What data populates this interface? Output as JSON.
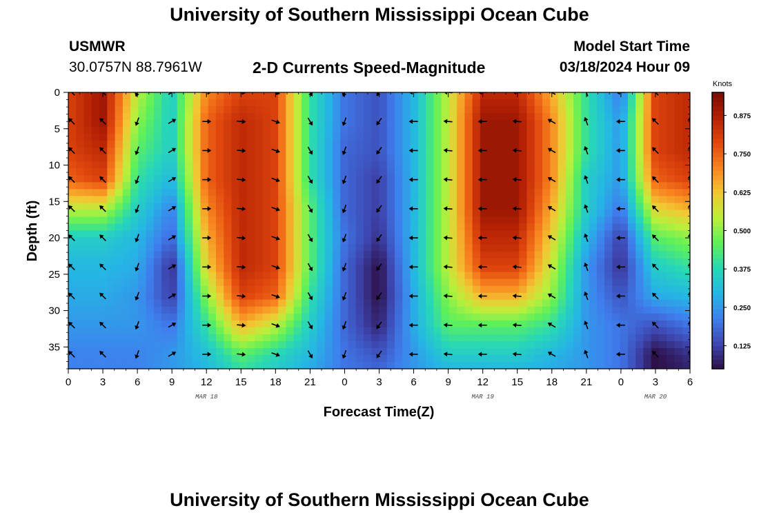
{
  "page": {
    "title_top": "University of Southern Mississippi Ocean Cube",
    "title_bottom": "University of Southern Mississippi Ocean Cube",
    "station": "USMWR",
    "coordinates": "30.0757N  88.7961W",
    "plot_title": "2-D Currents Speed-Magnitude",
    "model_start_label": "Model Start Time",
    "model_start_value": "03/18/2024 Hour 09"
  },
  "colors": {
    "ramp": [
      "#2d0f47",
      "#3e46b0",
      "#3f7eee",
      "#25b6e4",
      "#27d7b7",
      "#5ef05a",
      "#b9f03b",
      "#f2c733",
      "#f8841f",
      "#e1480e",
      "#b42004",
      "#7a0c03"
    ]
  },
  "chart_data": {
    "type": "heatmap",
    "title": "2-D Currents Speed-Magnitude",
    "xlabel": "Forecast Time(Z)",
    "ylabel": "Depth (ft)",
    "xlim": [
      0,
      54
    ],
    "ylim": [
      38,
      0
    ],
    "x_ticks": [
      0,
      3,
      6,
      9,
      12,
      15,
      18,
      21,
      24,
      27,
      30,
      33,
      36,
      39,
      42,
      45,
      48,
      51,
      54
    ],
    "x_tick_labels": [
      "0",
      "3",
      "6",
      "9",
      "12",
      "15",
      "18",
      "21",
      "0",
      "3",
      "6",
      "9",
      "12",
      "15",
      "18",
      "21",
      "0",
      "3",
      "6"
    ],
    "y_ticks": [
      0,
      5,
      10,
      15,
      20,
      25,
      30,
      35
    ],
    "y_tick_labels": [
      "0",
      "5",
      "10",
      "15",
      "20",
      "25",
      "30",
      "35"
    ],
    "date_labels": [
      {
        "x": 12,
        "label": "MAR 18"
      },
      {
        "x": 36,
        "label": "MAR 19"
      },
      {
        "x": 51,
        "label": "MAR 20"
      }
    ],
    "colorbar": {
      "label": "Knots",
      "range": [
        0.05,
        0.95
      ],
      "ticks": [
        0.125,
        0.25,
        0.375,
        0.5,
        0.625,
        0.75,
        0.875
      ],
      "tick_labels": [
        "0.125",
        "0.250",
        "0.375",
        "0.500",
        "0.625",
        "0.750",
        "0.875"
      ]
    },
    "speed_profile_knots": {
      "times": [
        0,
        3,
        6,
        9,
        12,
        15,
        18,
        21,
        24,
        27,
        30,
        33,
        36,
        39,
        42,
        45,
        48,
        51,
        54
      ],
      "depths": [
        0,
        4,
        8,
        12,
        16,
        20,
        24,
        28,
        32,
        36,
        38
      ],
      "values": [
        [
          0.8,
          0.9,
          0.55,
          0.35,
          0.7,
          0.8,
          0.8,
          0.4,
          0.2,
          0.15,
          0.3,
          0.55,
          0.85,
          0.85,
          0.65,
          0.4,
          0.2,
          0.8,
          0.85
        ],
        [
          0.8,
          0.9,
          0.5,
          0.35,
          0.75,
          0.85,
          0.8,
          0.4,
          0.2,
          0.15,
          0.3,
          0.55,
          0.9,
          0.9,
          0.7,
          0.4,
          0.25,
          0.8,
          0.85
        ],
        [
          0.8,
          0.85,
          0.45,
          0.35,
          0.75,
          0.85,
          0.8,
          0.4,
          0.18,
          0.15,
          0.3,
          0.55,
          0.9,
          0.9,
          0.7,
          0.4,
          0.25,
          0.8,
          0.85
        ],
        [
          0.75,
          0.8,
          0.4,
          0.3,
          0.75,
          0.85,
          0.8,
          0.4,
          0.18,
          0.12,
          0.3,
          0.55,
          0.9,
          0.9,
          0.7,
          0.35,
          0.25,
          0.75,
          0.8
        ],
        [
          0.55,
          0.55,
          0.35,
          0.22,
          0.7,
          0.85,
          0.8,
          0.45,
          0.18,
          0.12,
          0.3,
          0.55,
          0.9,
          0.9,
          0.65,
          0.35,
          0.2,
          0.6,
          0.65
        ],
        [
          0.35,
          0.35,
          0.3,
          0.18,
          0.65,
          0.85,
          0.8,
          0.45,
          0.2,
          0.1,
          0.3,
          0.55,
          0.85,
          0.85,
          0.6,
          0.3,
          0.12,
          0.45,
          0.5
        ],
        [
          0.3,
          0.3,
          0.28,
          0.1,
          0.6,
          0.85,
          0.8,
          0.45,
          0.18,
          0.05,
          0.3,
          0.55,
          0.8,
          0.8,
          0.55,
          0.25,
          0.1,
          0.35,
          0.4
        ],
        [
          0.28,
          0.28,
          0.25,
          0.12,
          0.5,
          0.8,
          0.75,
          0.4,
          0.18,
          0.05,
          0.28,
          0.5,
          0.65,
          0.65,
          0.5,
          0.25,
          0.15,
          0.28,
          0.3
        ],
        [
          0.25,
          0.25,
          0.25,
          0.2,
          0.4,
          0.65,
          0.55,
          0.35,
          0.18,
          0.08,
          0.28,
          0.45,
          0.45,
          0.45,
          0.4,
          0.25,
          0.2,
          0.15,
          0.2
        ],
        [
          0.22,
          0.22,
          0.22,
          0.25,
          0.32,
          0.45,
          0.38,
          0.3,
          0.2,
          0.15,
          0.25,
          0.35,
          0.35,
          0.35,
          0.3,
          0.25,
          0.2,
          0.05,
          0.1
        ],
        [
          0.22,
          0.22,
          0.22,
          0.25,
          0.3,
          0.4,
          0.35,
          0.28,
          0.2,
          0.18,
          0.25,
          0.3,
          0.3,
          0.3,
          0.28,
          0.25,
          0.2,
          0.05,
          0.08
        ]
      ]
    },
    "current_vectors": {
      "times": [
        0,
        3,
        6,
        9,
        12,
        15,
        18,
        21,
        24,
        27,
        30,
        33,
        36,
        39,
        42,
        45,
        48,
        51,
        54
      ],
      "depths": [
        0,
        4,
        8,
        12,
        16,
        20,
        24,
        28,
        32,
        36
      ],
      "direction_deg": [
        [
          315,
          315,
          200,
          60,
          90,
          95,
          110,
          150,
          200,
          215,
          270,
          275,
          270,
          275,
          300,
          340,
          270,
          315,
          0
        ],
        [
          315,
          315,
          200,
          60,
          90,
          95,
          110,
          150,
          200,
          215,
          270,
          275,
          270,
          275,
          300,
          340,
          270,
          315,
          0
        ],
        [
          315,
          315,
          200,
          60,
          90,
          95,
          110,
          150,
          200,
          215,
          270,
          275,
          270,
          275,
          300,
          340,
          270,
          315,
          0
        ],
        [
          315,
          315,
          200,
          60,
          90,
          95,
          110,
          150,
          200,
          215,
          270,
          275,
          270,
          275,
          300,
          340,
          270,
          315,
          0
        ],
        [
          315,
          315,
          200,
          60,
          90,
          95,
          110,
          150,
          200,
          215,
          270,
          275,
          270,
          275,
          300,
          340,
          270,
          315,
          0
        ],
        [
          315,
          315,
          200,
          60,
          90,
          95,
          110,
          150,
          200,
          215,
          270,
          275,
          270,
          275,
          300,
          340,
          270,
          315,
          0
        ],
        [
          315,
          315,
          200,
          60,
          90,
          95,
          110,
          150,
          200,
          215,
          270,
          275,
          270,
          275,
          300,
          340,
          270,
          315,
          0
        ],
        [
          315,
          315,
          200,
          60,
          90,
          95,
          110,
          150,
          200,
          215,
          270,
          275,
          270,
          275,
          300,
          340,
          270,
          315,
          0
        ],
        [
          315,
          315,
          200,
          60,
          90,
          95,
          110,
          150,
          200,
          215,
          270,
          275,
          270,
          275,
          300,
          340,
          270,
          315,
          0
        ],
        [
          315,
          315,
          200,
          60,
          90,
          95,
          110,
          150,
          200,
          215,
          270,
          275,
          270,
          275,
          300,
          340,
          270,
          315,
          0
        ]
      ]
    }
  }
}
